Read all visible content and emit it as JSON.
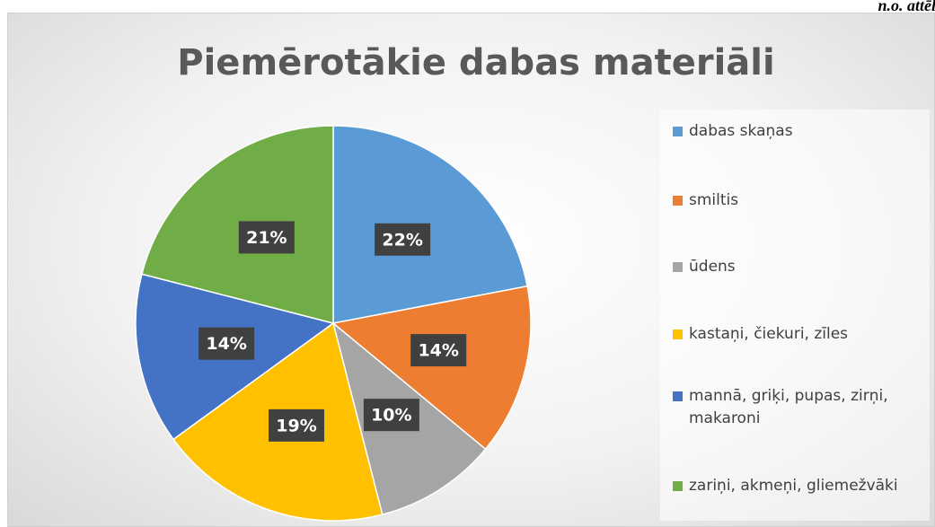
{
  "chart_data": {
    "type": "pie",
    "title": "Piemērotākie dabas materiāli",
    "annotation": "n.o. attēls",
    "categories": [
      "dabas skaņas",
      "smiltis",
      "ūdens",
      "kastaņi, čiekuri, zīles",
      "mannā, griķi, pupas, zirņi, makaroni",
      "zariņi, akmeņi, gliemežvāki"
    ],
    "values": [
      22,
      14,
      10,
      19,
      14,
      21
    ],
    "value_labels": [
      "22%",
      "14%",
      "10%",
      "19%",
      "14%",
      "21%"
    ],
    "colors": [
      "#5b9bd5",
      "#ed7d31",
      "#a5a5a5",
      "#ffc000",
      "#4472c4",
      "#70ad47"
    ],
    "legend": "right"
  }
}
